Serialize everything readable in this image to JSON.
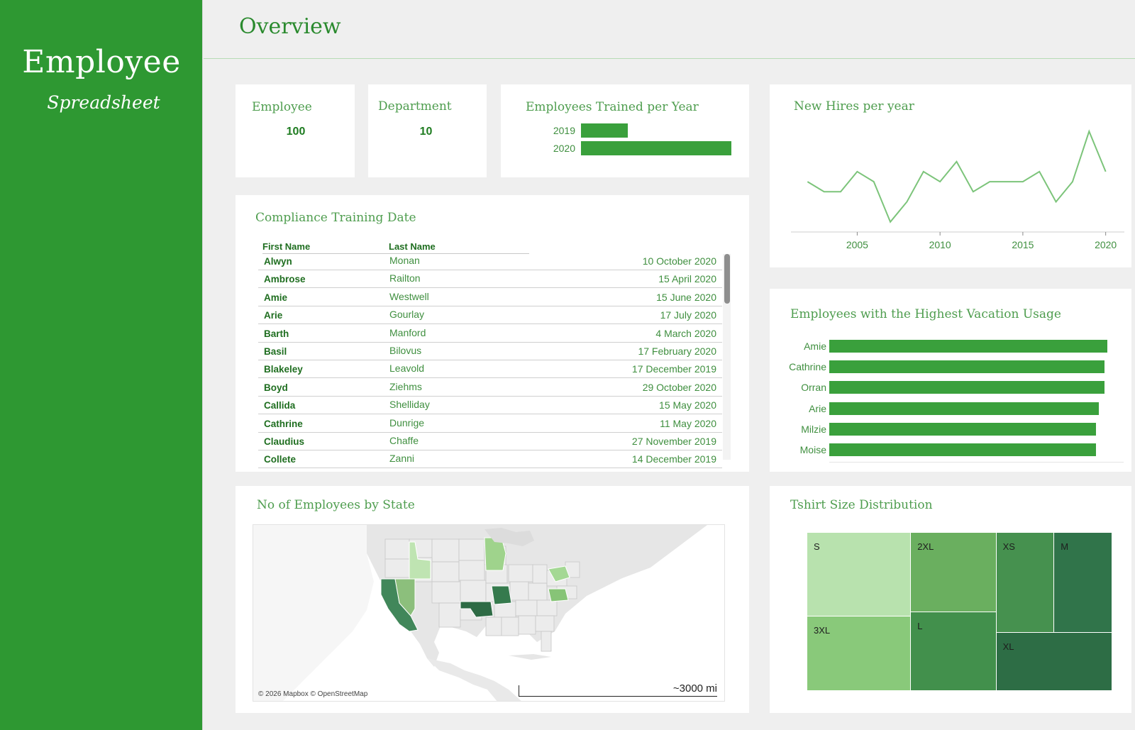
{
  "sidebar": {
    "title": "Employee",
    "subtitle": "Spreadsheet"
  },
  "header": {
    "title": "Overview"
  },
  "kpis": [
    {
      "label": "Employee",
      "value": "100"
    },
    {
      "label": "Department",
      "value": "10"
    }
  ],
  "trained": {
    "title": "Employees Trained per Year",
    "chart_data": {
      "type": "bar",
      "categories": [
        "2019",
        "2020"
      ],
      "values": [
        31,
        100
      ]
    }
  },
  "compliance": {
    "title": "Compliance Training Date",
    "columns": [
      "First Name",
      "Last Name"
    ],
    "rows": [
      {
        "first": "Alwyn",
        "last": "Monan",
        "date": "10 October 2020"
      },
      {
        "first": "Ambrose",
        "last": "Railton",
        "date": "15 April 2020"
      },
      {
        "first": "Amie",
        "last": "Westwell",
        "date": "15 June 2020"
      },
      {
        "first": "Arie",
        "last": "Gourlay",
        "date": "17 July 2020"
      },
      {
        "first": "Barth",
        "last": "Manford",
        "date": "4 March 2020"
      },
      {
        "first": "Basil",
        "last": "Bilovus",
        "date": "17 February 2020"
      },
      {
        "first": "Blakeley",
        "last": "Leavold",
        "date": "17 December 2019"
      },
      {
        "first": "Boyd",
        "last": "Ziehms",
        "date": "29 October 2020"
      },
      {
        "first": "Callida",
        "last": "Shelliday",
        "date": "15 May 2020"
      },
      {
        "first": "Cathrine",
        "last": "Dunrige",
        "date": "11 May 2020"
      },
      {
        "first": "Claudius",
        "last": "Chaffe",
        "date": "27 November 2019"
      },
      {
        "first": "Collete",
        "last": "Zanni",
        "date": "14 December 2019"
      }
    ]
  },
  "map": {
    "title": "No of Employees by State",
    "credit": "© 2026 Mapbox © OpenStreetMap",
    "scale": "~3000 mi"
  },
  "hires": {
    "title": "New Hires per year",
    "chart_data": {
      "type": "line",
      "x": [
        2002,
        2003,
        2004,
        2005,
        2006,
        2007,
        2008,
        2009,
        2010,
        2011,
        2012,
        2013,
        2014,
        2015,
        2016,
        2017,
        2018,
        2019,
        2020
      ],
      "y": [
        5,
        4,
        4,
        6,
        5,
        1,
        3,
        6,
        5,
        7,
        4,
        5,
        5,
        5,
        6,
        3,
        5,
        10,
        6
      ],
      "xticks": [
        "2005",
        "2010",
        "2015",
        "2020"
      ],
      "xtick_values": [
        2005,
        2010,
        2015,
        2020
      ],
      "xlim": [
        2001,
        2021
      ],
      "ylim": [
        0,
        11
      ]
    }
  },
  "vacation": {
    "title": "Employees with the Highest Vacation Usage",
    "chart_data": {
      "type": "bar",
      "categories": [
        "Amie",
        "Cathrine",
        "Orran",
        "Arie",
        "Milzie",
        "Moise"
      ],
      "values": [
        100,
        99,
        99,
        97,
        96,
        96
      ]
    }
  },
  "tshirt": {
    "title": "Tshirt Size Distribution",
    "chart_data": {
      "type": "treemap",
      "categories": [
        "S",
        "3XL",
        "2XL",
        "L",
        "XS",
        "M",
        "XL"
      ],
      "values": [
        18,
        16,
        14,
        14,
        12,
        12,
        14
      ],
      "colors": {
        "S": "#b8e2ae",
        "3XL": "#89c97a",
        "2XL": "#6aaf5f",
        "L": "#42904c",
        "XS": "#46914f",
        "M": "#30744a",
        "XL": "#2d6d45"
      }
    }
  },
  "theme": {
    "green": "#2e9832",
    "bar": "#3aa03c",
    "text": "#3f8f3f"
  }
}
